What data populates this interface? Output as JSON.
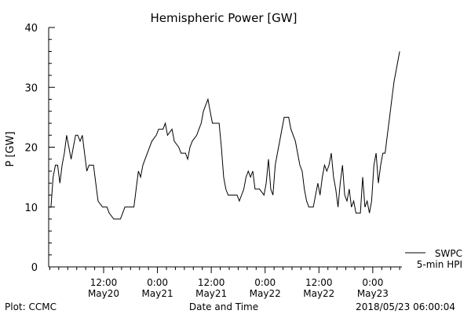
{
  "chart_data": {
    "type": "line",
    "title": "Hemispheric Power [GW]",
    "xlabel": "Date and Time",
    "ylabel": "P [GW]",
    "ylim": [
      0,
      40
    ],
    "xlim": [
      "2018-05-19T23:45",
      "2018-05-23T06:30"
    ],
    "grid": false,
    "y_ticks": [
      0,
      10,
      20,
      30,
      40
    ],
    "x_ticks": [
      {
        "time": "2018-05-20T12:00",
        "label1": "12:00",
        "label2": "May20"
      },
      {
        "time": "2018-05-21T00:00",
        "label1": "0:00",
        "label2": "May21"
      },
      {
        "time": "2018-05-21T12:00",
        "label1": "12:00",
        "label2": "May21"
      },
      {
        "time": "2018-05-22T00:00",
        "label1": "0:00",
        "label2": "May22"
      },
      {
        "time": "2018-05-22T12:00",
        "label1": "12:00",
        "label2": "May22"
      },
      {
        "time": "2018-05-23T00:00",
        "label1": "0:00",
        "label2": "May23"
      }
    ],
    "legend": {
      "position": "bottom-right",
      "line1": "SWPC",
      "line2": "5-min HPI"
    },
    "series": [
      {
        "name": "SWPC 5-min HPI",
        "color": "#000000",
        "points": [
          [
            "2018-05-19T23:45",
            10
          ],
          [
            "2018-05-20T00:15",
            10
          ],
          [
            "2018-05-20T00:45",
            15
          ],
          [
            "2018-05-20T01:15",
            17
          ],
          [
            "2018-05-20T01:45",
            17
          ],
          [
            "2018-05-20T02:15",
            14
          ],
          [
            "2018-05-20T02:45",
            17
          ],
          [
            "2018-05-20T03:15",
            19
          ],
          [
            "2018-05-20T03:45",
            22
          ],
          [
            "2018-05-20T04:15",
            20
          ],
          [
            "2018-05-20T04:45",
            18
          ],
          [
            "2018-05-20T05:15",
            20
          ],
          [
            "2018-05-20T05:45",
            22
          ],
          [
            "2018-05-20T06:15",
            22
          ],
          [
            "2018-05-20T06:45",
            21
          ],
          [
            "2018-05-20T07:15",
            22
          ],
          [
            "2018-05-20T07:45",
            19
          ],
          [
            "2018-05-20T08:15",
            16
          ],
          [
            "2018-05-20T08:45",
            17
          ],
          [
            "2018-05-20T09:15",
            17
          ],
          [
            "2018-05-20T09:45",
            17
          ],
          [
            "2018-05-20T10:15",
            14
          ],
          [
            "2018-05-20T10:45",
            11
          ],
          [
            "2018-05-20T11:45",
            10
          ],
          [
            "2018-05-20T12:45",
            10
          ],
          [
            "2018-05-20T13:15",
            9
          ],
          [
            "2018-05-20T14:15",
            8
          ],
          [
            "2018-05-20T15:45",
            8
          ],
          [
            "2018-05-20T16:15",
            9
          ],
          [
            "2018-05-20T16:45",
            10
          ],
          [
            "2018-05-20T18:45",
            10
          ],
          [
            "2018-05-20T19:15",
            13
          ],
          [
            "2018-05-20T19:45",
            16
          ],
          [
            "2018-05-20T20:15",
            15
          ],
          [
            "2018-05-20T20:45",
            17
          ],
          [
            "2018-05-20T21:45",
            19
          ],
          [
            "2018-05-20T22:45",
            21
          ],
          [
            "2018-05-20T23:45",
            22
          ],
          [
            "2018-05-21T00:15",
            23
          ],
          [
            "2018-05-21T01:15",
            23
          ],
          [
            "2018-05-21T01:45",
            24
          ],
          [
            "2018-05-21T02:15",
            22
          ],
          [
            "2018-05-21T03:15",
            23
          ],
          [
            "2018-05-21T03:45",
            21
          ],
          [
            "2018-05-21T04:45",
            20
          ],
          [
            "2018-05-21T05:15",
            19
          ],
          [
            "2018-05-21T06:15",
            19
          ],
          [
            "2018-05-21T06:45",
            18
          ],
          [
            "2018-05-21T07:15",
            20
          ],
          [
            "2018-05-21T07:45",
            21
          ],
          [
            "2018-05-21T08:45",
            22
          ],
          [
            "2018-05-21T09:15",
            23
          ],
          [
            "2018-05-21T09:45",
            24
          ],
          [
            "2018-05-21T10:15",
            26
          ],
          [
            "2018-05-21T10:45",
            27
          ],
          [
            "2018-05-21T11:15",
            28
          ],
          [
            "2018-05-21T11:45",
            26
          ],
          [
            "2018-05-21T12:15",
            24
          ],
          [
            "2018-05-21T13:45",
            24
          ],
          [
            "2018-05-21T14:15",
            20
          ],
          [
            "2018-05-21T14:45",
            15
          ],
          [
            "2018-05-21T15:15",
            13
          ],
          [
            "2018-05-21T15:45",
            12
          ],
          [
            "2018-05-21T17:45",
            12
          ],
          [
            "2018-05-21T18:15",
            11
          ],
          [
            "2018-05-21T18:45",
            12
          ],
          [
            "2018-05-21T19:15",
            13
          ],
          [
            "2018-05-21T19:45",
            15
          ],
          [
            "2018-05-21T20:15",
            16
          ],
          [
            "2018-05-21T20:45",
            15
          ],
          [
            "2018-05-21T21:15",
            16
          ],
          [
            "2018-05-21T21:45",
            13
          ],
          [
            "2018-05-21T22:45",
            13
          ],
          [
            "2018-05-21T23:45",
            12
          ],
          [
            "2018-05-22T00:15",
            14
          ],
          [
            "2018-05-22T00:45",
            18
          ],
          [
            "2018-05-22T01:15",
            13
          ],
          [
            "2018-05-22T01:45",
            12
          ],
          [
            "2018-05-22T02:15",
            17
          ],
          [
            "2018-05-22T02:45",
            19
          ],
          [
            "2018-05-22T03:15",
            21
          ],
          [
            "2018-05-22T03:45",
            23
          ],
          [
            "2018-05-22T04:15",
            25
          ],
          [
            "2018-05-22T05:15",
            25
          ],
          [
            "2018-05-22T05:45",
            23
          ],
          [
            "2018-05-22T06:45",
            21
          ],
          [
            "2018-05-22T07:15",
            19
          ],
          [
            "2018-05-22T07:45",
            17
          ],
          [
            "2018-05-22T08:15",
            16
          ],
          [
            "2018-05-22T08:45",
            13
          ],
          [
            "2018-05-22T09:15",
            11
          ],
          [
            "2018-05-22T09:45",
            10
          ],
          [
            "2018-05-22T10:45",
            10
          ],
          [
            "2018-05-22T11:15",
            12
          ],
          [
            "2018-05-22T11:45",
            14
          ],
          [
            "2018-05-22T12:15",
            12
          ],
          [
            "2018-05-22T12:45",
            15
          ],
          [
            "2018-05-22T13:15",
            17
          ],
          [
            "2018-05-22T13:45",
            16
          ],
          [
            "2018-05-22T14:15",
            17
          ],
          [
            "2018-05-22T14:45",
            19
          ],
          [
            "2018-05-22T15:15",
            15
          ],
          [
            "2018-05-22T15:45",
            13
          ],
          [
            "2018-05-22T16:15",
            10
          ],
          [
            "2018-05-22T16:45",
            14
          ],
          [
            "2018-05-22T17:15",
            17
          ],
          [
            "2018-05-22T17:45",
            12
          ],
          [
            "2018-05-22T18:15",
            11
          ],
          [
            "2018-05-22T18:45",
            13
          ],
          [
            "2018-05-22T19:15",
            10
          ],
          [
            "2018-05-22T19:45",
            11
          ],
          [
            "2018-05-22T20:15",
            9
          ],
          [
            "2018-05-22T21:15",
            9
          ],
          [
            "2018-05-22T21:45",
            15
          ],
          [
            "2018-05-22T22:15",
            10
          ],
          [
            "2018-05-22T22:45",
            11
          ],
          [
            "2018-05-22T23:15",
            9
          ],
          [
            "2018-05-22T23:45",
            11
          ],
          [
            "2018-05-23T00:15",
            17
          ],
          [
            "2018-05-23T00:45",
            19
          ],
          [
            "2018-05-23T01:15",
            14
          ],
          [
            "2018-05-23T01:45",
            17
          ],
          [
            "2018-05-23T02:15",
            19
          ],
          [
            "2018-05-23T02:45",
            19
          ],
          [
            "2018-05-23T03:15",
            22
          ],
          [
            "2018-05-23T03:45",
            25
          ],
          [
            "2018-05-23T04:15",
            28
          ],
          [
            "2018-05-23T04:45",
            31
          ],
          [
            "2018-05-23T05:15",
            33
          ],
          [
            "2018-05-23T05:45",
            35
          ],
          [
            "2018-05-23T06:00",
            36
          ]
        ]
      }
    ]
  },
  "footer": {
    "left": "Plot: CCMC",
    "right": "2018/05/23 06:00:04"
  }
}
